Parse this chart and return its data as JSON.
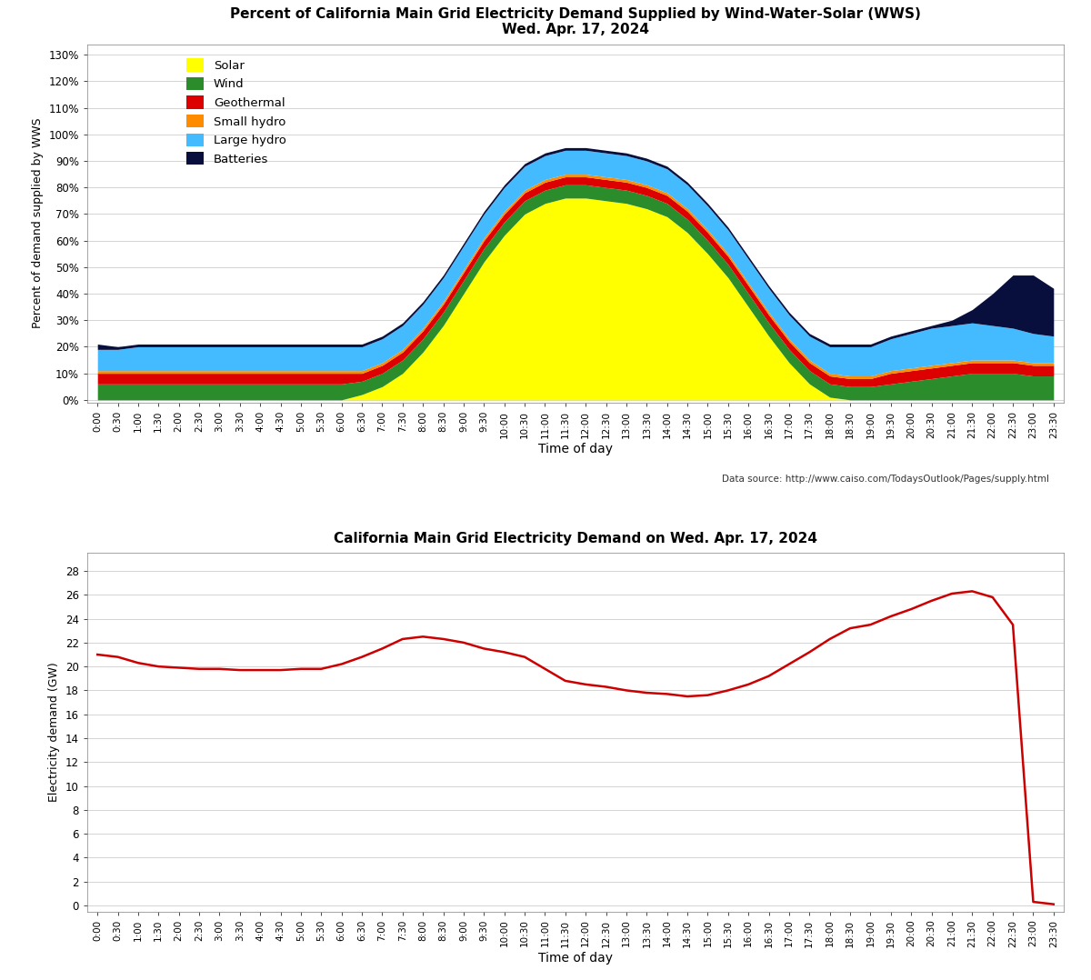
{
  "title1_line1": "Percent of California Main Grid Electricity Demand Supplied by Wind-Water-Solar (WWS)",
  "title1_line2": "Wed. Apr. 17, 2024",
  "title2": "California Main Grid Electricity Demand on Wed. Apr. 17, 2024",
  "xlabel": "Time of day",
  "ylabel1": "Percent of demand supplied by WWS",
  "ylabel2": "Electricity demand (GW)",
  "data_source": "Data source: http://www.caiso.com/TodaysOutlook/Pages/supply.html",
  "bg_color": "#ffffff",
  "grid_color": "#aaaaaa",
  "colors": {
    "solar": "#FFFF00",
    "wind": "#2a8c2a",
    "geothermal": "#dd0000",
    "small_hydro": "#ff8c00",
    "large_hydro": "#44bbff",
    "batteries": "#080f3c",
    "demand_line": "#cc0000"
  },
  "legend_labels": [
    "Solar",
    "Wind",
    "Geothermal",
    "Small hydro",
    "Large hydro",
    "Batteries"
  ],
  "yticks1": [
    0,
    10,
    20,
    30,
    40,
    50,
    60,
    70,
    80,
    90,
    100,
    110,
    120,
    130
  ],
  "ytick_labels1": [
    "0%",
    "10%",
    "20%",
    "30%",
    "40%",
    "50%",
    "60%",
    "70%",
    "80%",
    "90%",
    "100%",
    "110%",
    "120%",
    "130%"
  ],
  "yticks2": [
    0,
    2,
    4,
    6,
    8,
    10,
    12,
    14,
    16,
    18,
    20,
    22,
    24,
    26,
    28
  ],
  "ylim1": [
    -1,
    134
  ],
  "ylim2": [
    -0.5,
    29.5
  ],
  "time_labels": [
    "0:00",
    "0:30",
    "1:00",
    "1:30",
    "2:00",
    "2:30",
    "3:00",
    "3:30",
    "4:00",
    "4:30",
    "5:00",
    "5:30",
    "6:00",
    "6:30",
    "7:00",
    "7:30",
    "8:00",
    "8:30",
    "9:00",
    "9:30",
    "10:00",
    "10:30",
    "11:00",
    "11:30",
    "12:00",
    "12:30",
    "13:00",
    "13:30",
    "14:00",
    "14:30",
    "15:00",
    "15:30",
    "16:00",
    "16:30",
    "17:00",
    "17:30",
    "18:00",
    "18:30",
    "19:00",
    "19:30",
    "20:00",
    "20:30",
    "21:00",
    "21:30",
    "22:00",
    "22:30",
    "23:00",
    "23:30"
  ],
  "solar": [
    0,
    0,
    0,
    0,
    0,
    0,
    0,
    0,
    0,
    0,
    0,
    0,
    0,
    2,
    5,
    10,
    18,
    28,
    40,
    52,
    62,
    70,
    74,
    76,
    76,
    75,
    74,
    72,
    69,
    63,
    55,
    46,
    35,
    24,
    14,
    6,
    1,
    0,
    0,
    0,
    0,
    0,
    0,
    0,
    0,
    0,
    0,
    0
  ],
  "wind": [
    6,
    6,
    6,
    6,
    6,
    6,
    6,
    6,
    6,
    6,
    6,
    6,
    6,
    5,
    5,
    5,
    5,
    5,
    5,
    5,
    5,
    5,
    5,
    5,
    5,
    5,
    5,
    5,
    5,
    5,
    5,
    5,
    5,
    5,
    5,
    5,
    5,
    5,
    5,
    6,
    7,
    8,
    9,
    10,
    10,
    10,
    9,
    9
  ],
  "geothermal": [
    4,
    4,
    4,
    4,
    4,
    4,
    4,
    4,
    4,
    4,
    4,
    4,
    4,
    3,
    3,
    3,
    3,
    3,
    3,
    3,
    3,
    3,
    3,
    3,
    3,
    3,
    3,
    3,
    3,
    3,
    3,
    3,
    3,
    3,
    3,
    3,
    3,
    3,
    3,
    4,
    4,
    4,
    4,
    4,
    4,
    4,
    4,
    4
  ],
  "small_hydro": [
    1,
    1,
    1,
    1,
    1,
    1,
    1,
    1,
    1,
    1,
    1,
    1,
    1,
    1,
    1,
    1,
    1,
    1,
    1,
    1,
    1,
    1,
    1,
    1,
    1,
    1,
    1,
    1,
    1,
    1,
    1,
    1,
    1,
    1,
    1,
    1,
    1,
    1,
    1,
    1,
    1,
    1,
    1,
    1,
    1,
    1,
    1,
    1
  ],
  "large_hydro": [
    8,
    8,
    9,
    9,
    9,
    9,
    9,
    9,
    9,
    9,
    9,
    9,
    9,
    9,
    9,
    9,
    9,
    9,
    9,
    9,
    9,
    9,
    9,
    9,
    9,
    9,
    9,
    9,
    9,
    9,
    9,
    9,
    9,
    9,
    9,
    9,
    10,
    11,
    11,
    12,
    13,
    14,
    14,
    14,
    13,
    12,
    11,
    10
  ],
  "batteries": [
    2,
    1,
    1,
    1,
    1,
    1,
    1,
    1,
    1,
    1,
    1,
    1,
    1,
    1,
    1,
    1,
    1,
    1,
    1,
    1,
    1,
    1,
    1,
    1,
    1,
    1,
    1,
    1,
    1,
    1,
    1,
    1,
    1,
    1,
    1,
    1,
    1,
    1,
    1,
    1,
    1,
    1,
    2,
    5,
    12,
    20,
    22,
    18
  ],
  "demand": [
    21.0,
    20.8,
    20.3,
    20.0,
    19.9,
    19.8,
    19.8,
    19.7,
    19.7,
    19.7,
    19.8,
    19.8,
    20.2,
    20.8,
    21.5,
    22.3,
    22.5,
    22.3,
    22.0,
    21.5,
    21.2,
    20.8,
    19.8,
    18.8,
    18.5,
    18.3,
    18.0,
    17.8,
    17.7,
    17.5,
    17.6,
    18.0,
    18.5,
    19.2,
    20.2,
    21.2,
    22.3,
    23.2,
    23.5,
    24.2,
    24.8,
    25.5,
    26.1,
    26.3,
    25.8,
    23.5,
    0.3,
    0.1
  ]
}
